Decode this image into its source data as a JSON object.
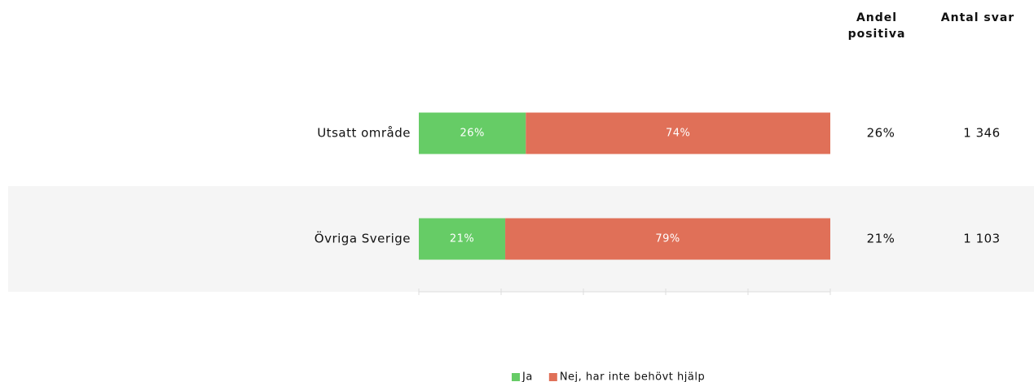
{
  "chart_data": {
    "type": "stacked_barh",
    "categories": [
      "Utsatt område",
      "Övriga Sverige"
    ],
    "series": [
      {
        "name": "Ja",
        "color": "#66cc66",
        "values": [
          26,
          21
        ],
        "value_labels": [
          "26%",
          "21%"
        ]
      },
      {
        "name": "Nej, har inte behövt hjälp",
        "color": "#e07058",
        "values": [
          74,
          79
        ],
        "value_labels": [
          "74%",
          "79%"
        ]
      }
    ],
    "xlim": [
      0,
      100
    ],
    "xticks": [
      0,
      20,
      40,
      60,
      80,
      100
    ],
    "columns": [
      {
        "name": "Andel positiva",
        "values": [
          26,
          21
        ],
        "value_labels": [
          "26%",
          "21%"
        ]
      },
      {
        "name": "Antal svar",
        "values": [
          1346,
          1103
        ],
        "value_labels": [
          "1 346",
          "1 103"
        ]
      }
    ]
  }
}
